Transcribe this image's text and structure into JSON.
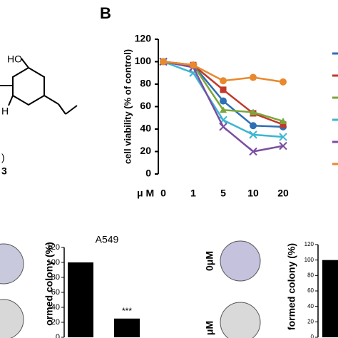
{
  "structure_labels": [
    "HO",
    "H",
    ")",
    "3"
  ],
  "panel_label": "B",
  "image_labels": [
    "0μM",
    "μM"
  ],
  "chart_data": [
    {
      "type": "line",
      "y_label": "cell viability (% of control)",
      "x_label": "μ M",
      "categories": [
        "0",
        "1",
        "5",
        "10",
        "20"
      ],
      "ylim": [
        0,
        120
      ],
      "yticks": [
        0,
        20,
        40,
        60,
        80,
        100,
        120
      ],
      "series": [
        {
          "color": "#2e6fb5",
          "marker": "circle",
          "values": [
            100,
            97,
            65,
            43,
            42
          ]
        },
        {
          "color": "#c0392b",
          "marker": "square",
          "values": [
            100,
            97,
            75,
            54,
            44
          ]
        },
        {
          "color": "#7aa63a",
          "marker": "triangle",
          "values": [
            100,
            97,
            57,
            55,
            47
          ]
        },
        {
          "color": "#3cb6d0",
          "marker": "x",
          "values": [
            100,
            90,
            48,
            35,
            33
          ]
        },
        {
          "color": "#7b4fa0",
          "marker": "x",
          "values": [
            100,
            95,
            42,
            20,
            25
          ]
        },
        {
          "color": "#e8892e",
          "marker": "circle",
          "values": [
            100,
            97,
            83,
            86,
            82
          ]
        }
      ]
    },
    {
      "type": "bar",
      "title": "A549",
      "y_label": "ormed colony (%)",
      "ylim": [
        0,
        120
      ],
      "yticks": [
        0,
        20,
        40,
        60,
        80,
        100,
        120
      ],
      "values": [
        100,
        25
      ],
      "value_labels": [
        null,
        "***"
      ],
      "color": "#000000"
    },
    {
      "type": "bar",
      "y_label": "formed colony (%)",
      "ylim": [
        0,
        120
      ],
      "yticks": [
        0,
        20,
        40,
        60,
        80,
        100,
        120
      ],
      "values": [
        100
      ],
      "color": "#000000"
    }
  ]
}
